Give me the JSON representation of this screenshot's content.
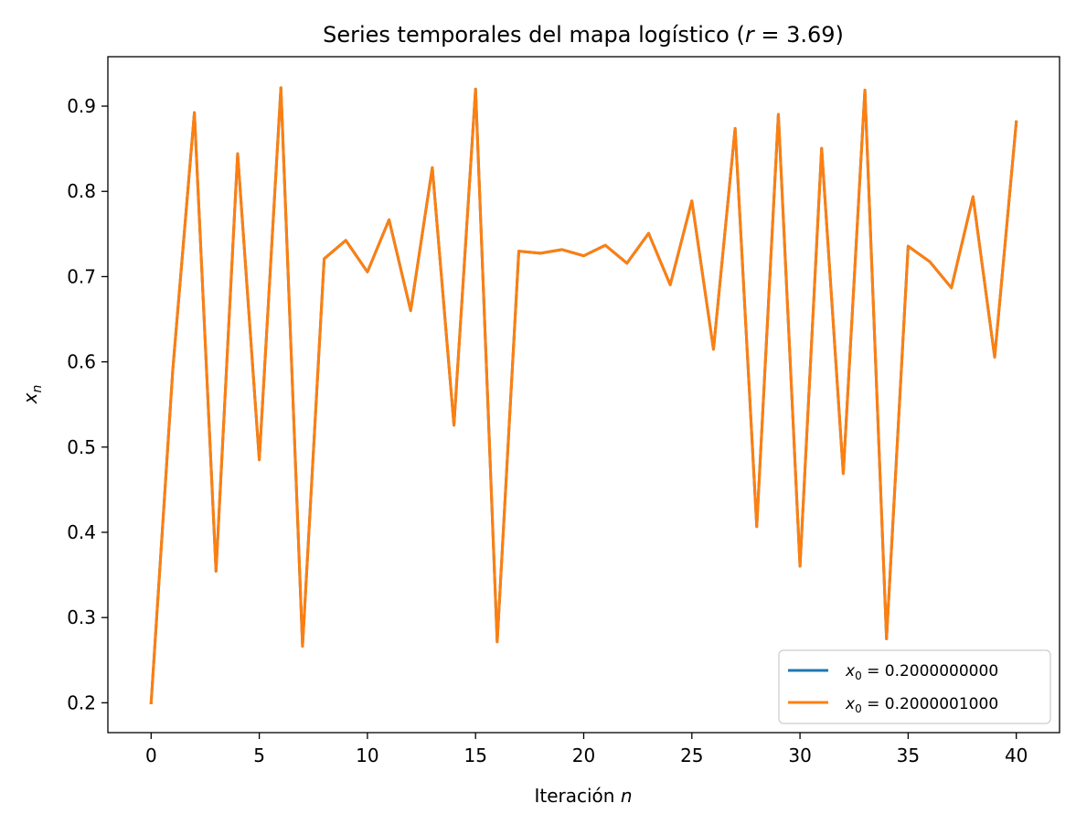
{
  "chart_data": {
    "type": "line",
    "title": "Series temporales del mapa logístico (r = 3.69)",
    "title_parts": {
      "prefix": "Series temporales del mapa logístico (",
      "var": "r",
      "suffix": " = 3.69)"
    },
    "xlabel": "Iteración n",
    "xlabel_parts": {
      "text": "Iteración ",
      "var": "n"
    },
    "ylabel": "x_n",
    "ylabel_parts": {
      "var": "x",
      "sub": "n"
    },
    "xlim": [
      -2,
      42
    ],
    "ylim": [
      0.165,
      0.958
    ],
    "xticks": [
      0,
      5,
      10,
      15,
      20,
      25,
      30,
      35,
      40
    ],
    "yticks": [
      0.2,
      0.3,
      0.4,
      0.5,
      0.6,
      0.7,
      0.8,
      0.9
    ],
    "grid": false,
    "legend_position": "lower-right",
    "x": [
      0,
      1,
      2,
      3,
      4,
      5,
      6,
      7,
      8,
      9,
      10,
      11,
      12,
      13,
      14,
      15,
      16,
      17,
      18,
      19,
      20,
      21,
      22,
      23,
      24,
      25,
      26,
      27,
      28,
      29,
      30,
      31,
      32,
      33,
      34,
      35,
      36,
      37,
      38,
      39,
      40
    ],
    "series": [
      {
        "name": "x_0 = 0.2000000000",
        "legend_parts": {
          "var": "x",
          "sub": "0",
          "value": " = 0.2000000000"
        },
        "color": "#1f77b4",
        "values": [
          0.2,
          0.5904,
          0.8924,
          0.3543,
          0.8443,
          0.4851,
          0.9217,
          0.2663,
          0.7209,
          0.7425,
          0.7055,
          0.7667,
          0.6601,
          0.8279,
          0.5257,
          0.92,
          0.2715,
          0.7299,
          0.7274,
          0.7317,
          0.7244,
          0.7368,
          0.7157,
          0.7508,
          0.6904,
          0.7888,
          0.6147,
          0.8739,
          0.4067,
          0.8904,
          0.3602,
          0.8506,
          0.469,
          0.9189,
          0.275,
          0.7357,
          0.7175,
          0.6868,
          0.7937,
          0.6054,
          0.8815
        ]
      },
      {
        "name": "x_0 = 0.2000001000",
        "legend_parts": {
          "var": "x",
          "sub": "0",
          "value": " = 0.2000001000"
        },
        "color": "#ff7f0e",
        "values": [
          0.2,
          0.5904,
          0.8924,
          0.3543,
          0.8443,
          0.4851,
          0.9217,
          0.2663,
          0.7209,
          0.7425,
          0.7055,
          0.7667,
          0.6601,
          0.8279,
          0.5257,
          0.92,
          0.2715,
          0.7299,
          0.7274,
          0.7317,
          0.7244,
          0.7368,
          0.7157,
          0.7508,
          0.6904,
          0.7888,
          0.6147,
          0.8739,
          0.4067,
          0.8904,
          0.3602,
          0.8506,
          0.469,
          0.9189,
          0.275,
          0.7357,
          0.7175,
          0.6868,
          0.7937,
          0.6054,
          0.8815
        ]
      }
    ]
  }
}
